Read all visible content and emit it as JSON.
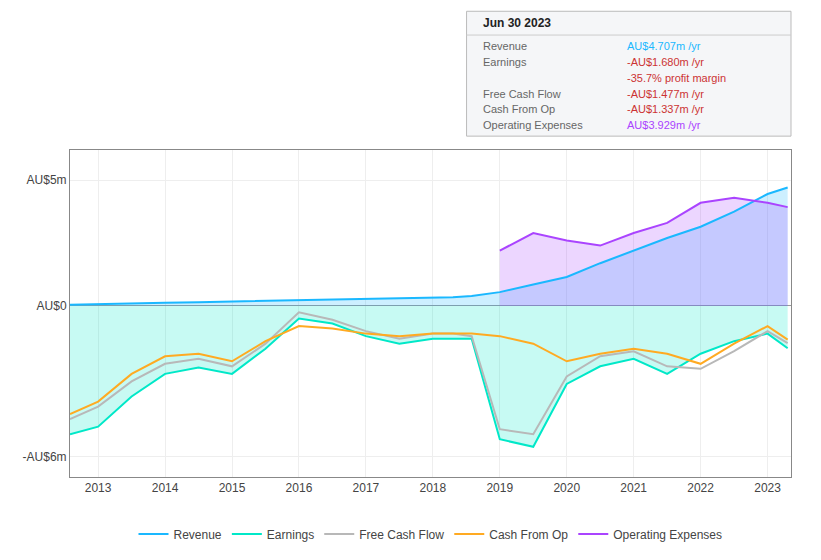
{
  "chart_data": {
    "type": "line",
    "x": [
      2012.58,
      2013.0,
      2013.5,
      2014.0,
      2014.5,
      2015.0,
      2015.5,
      2016.0,
      2016.5,
      2017.0,
      2017.5,
      2018.0,
      2018.3,
      2018.58,
      2019.0,
      2019.5,
      2020.0,
      2020.5,
      2021.0,
      2021.5,
      2022.0,
      2022.5,
      2023.0,
      2023.3
    ],
    "series": [
      {
        "name": "Revenue",
        "color": "#1ab8ff",
        "type": "area",
        "values": [
          0.05,
          0.08,
          0.1,
          0.13,
          0.15,
          0.18,
          0.2,
          0.22,
          0.25,
          0.28,
          0.3,
          0.33,
          0.35,
          0.4,
          0.55,
          0.85,
          1.15,
          1.7,
          2.2,
          2.7,
          3.15,
          3.75,
          4.45,
          4.707
        ]
      },
      {
        "name": "Earnings",
        "color": "#00e8c8",
        "type": "area",
        "values": [
          -5.1,
          -4.8,
          -3.6,
          -2.7,
          -2.45,
          -2.7,
          -1.7,
          -0.5,
          -0.7,
          -1.2,
          -1.5,
          -1.3,
          -1.3,
          -1.3,
          -5.3,
          -5.6,
          -3.1,
          -2.4,
          -2.1,
          -2.7,
          -1.9,
          -1.4,
          -1.1,
          -1.68
        ]
      },
      {
        "name": "Free Cash Flow",
        "color": "#b8b8b8",
        "type": "line",
        "values": [
          -4.5,
          -4.0,
          -3.0,
          -2.3,
          -2.1,
          -2.4,
          -1.5,
          -0.25,
          -0.55,
          -1.0,
          -1.3,
          -1.1,
          -1.1,
          -1.2,
          -4.9,
          -5.1,
          -2.8,
          -2.0,
          -1.8,
          -2.4,
          -2.5,
          -1.8,
          -1.0,
          -1.477
        ]
      },
      {
        "name": "Cash From Op",
        "color": "#ffaa22",
        "type": "line",
        "values": [
          -4.3,
          -3.8,
          -2.7,
          -2.0,
          -1.9,
          -2.2,
          -1.4,
          -0.8,
          -0.9,
          -1.1,
          -1.2,
          -1.1,
          -1.1,
          -1.1,
          -1.2,
          -1.5,
          -2.2,
          -1.9,
          -1.7,
          -1.9,
          -2.3,
          -1.5,
          -0.8,
          -1.337
        ]
      },
      {
        "name": "Operating Expenses",
        "color": "#aa44ff",
        "type": "area",
        "values": [
          null,
          null,
          null,
          null,
          null,
          null,
          null,
          null,
          null,
          null,
          null,
          null,
          null,
          null,
          2.2,
          2.9,
          2.6,
          2.4,
          2.9,
          3.3,
          4.1,
          4.3,
          4.1,
          3.929
        ]
      }
    ],
    "xlim": [
      2012.58,
      2023.35
    ],
    "xticks": [
      2013,
      2014,
      2015,
      2016,
      2017,
      2018,
      2019,
      2020,
      2021,
      2022,
      2023
    ],
    "ylim": [
      -6.8,
      6.2
    ],
    "yticks": [
      {
        "value": 5.0,
        "label": "AU$5m"
      },
      {
        "value": 0.0,
        "label": "AU$0"
      },
      {
        "value": -6.0,
        "label": "-AU$6m"
      }
    ],
    "grid": true,
    "legend": "bottom",
    "annotations": [
      {
        "title": "Jun 30 2023",
        "rows": [
          {
            "label": "Revenue",
            "text": "AU$4.707m /yr",
            "color": "#1ab8ff"
          },
          {
            "label": "Earnings",
            "text": "-AU$1.680m /yr",
            "color": "#cc3333"
          },
          {
            "text": "-35.7% profit margin",
            "color": "#cc3333"
          },
          {
            "label": "Free Cash Flow",
            "text": "-AU$1.477m /yr",
            "color": "#cc3333"
          },
          {
            "label": "Cash From Op",
            "text": "-AU$1.337m /yr",
            "color": "#cc3333"
          },
          {
            "label": "Operating Expenses",
            "text": "AU$3.929m /yr",
            "color": "#aa44ff"
          }
        ]
      }
    ]
  }
}
